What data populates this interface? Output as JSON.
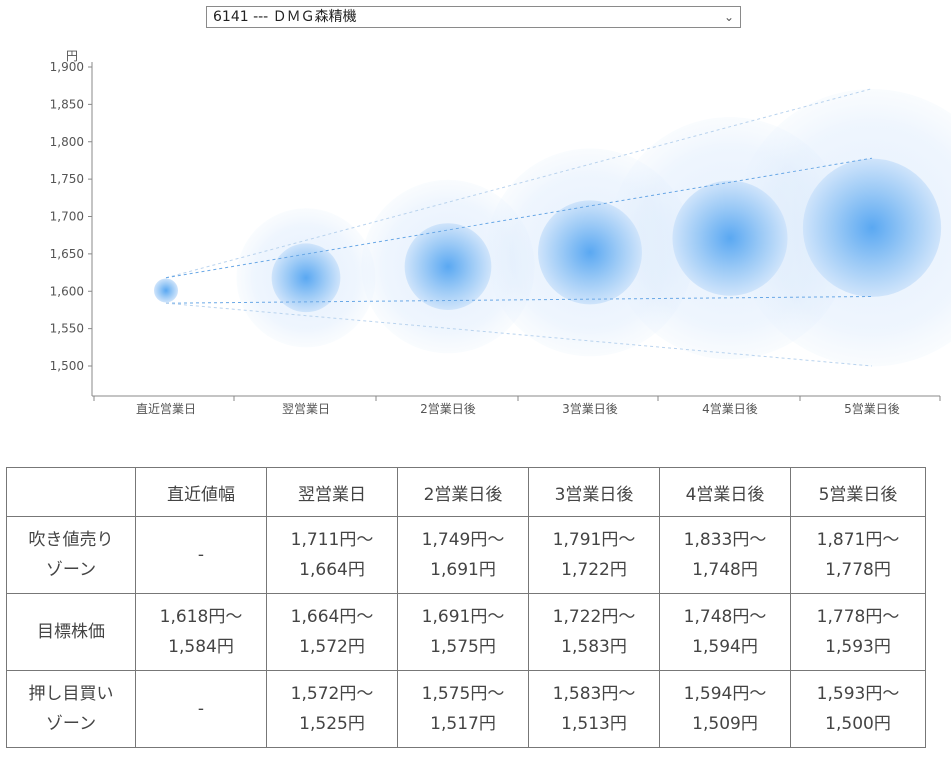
{
  "stock_selector": {
    "value": "6141 --- ＤＭＧ森精機",
    "chevron": "⌄"
  },
  "chart_data": {
    "type": "bubble-forecast",
    "ylabel": "円",
    "yticks": [
      "1,500",
      "1,550",
      "1,600",
      "1,650",
      "1,700",
      "1,750",
      "1,800",
      "1,850",
      "1,900"
    ],
    "ylim": [
      1460,
      1905
    ],
    "categories": [
      "直近営業日",
      "翌営業日",
      "2営業日後",
      "3営業日後",
      "4営業日後",
      "5営業日後"
    ],
    "target_mid": [
      1601,
      1618,
      1633,
      1652,
      1671,
      1685
    ],
    "upper_outer": [
      1618,
      1711,
      1749,
      1791,
      1833,
      1871
    ],
    "upper_inner": [
      1618,
      1664,
      1691,
      1722,
      1748,
      1778
    ],
    "lower_inner": [
      1584,
      1572,
      1575,
      1583,
      1594,
      1593
    ],
    "lower_outer": [
      1584,
      1525,
      1517,
      1513,
      1509,
      1500
    ],
    "grid": false,
    "colors": {
      "bubble": "#4a9ef0",
      "guide": "#6aa8e6",
      "axis": "#888888"
    }
  },
  "table": {
    "headers": [
      "",
      "直近値幅",
      "翌営業日",
      "2営業日後",
      "3営業日後",
      "4営業日後",
      "5営業日後"
    ],
    "rows": [
      {
        "label": "吹き値売り\nゾーン",
        "cells": [
          "-",
          "1,711円～\n1,664円",
          "1,749円～\n1,691円",
          "1,791円～\n1,722円",
          "1,833円～\n1,748円",
          "1,871円～\n1,778円"
        ]
      },
      {
        "label": "目標株価",
        "cells": [
          "1,618円～\n1,584円",
          "1,664円～\n1,572円",
          "1,691円～\n1,575円",
          "1,722円～\n1,583円",
          "1,748円～\n1,594円",
          "1,778円～\n1,593円"
        ]
      },
      {
        "label": "押し目買い\nゾーン",
        "cells": [
          "-",
          "1,572円～\n1,525円",
          "1,575円～\n1,517円",
          "1,583円～\n1,513円",
          "1,594円～\n1,509円",
          "1,593円～\n1,500円"
        ]
      }
    ]
  }
}
